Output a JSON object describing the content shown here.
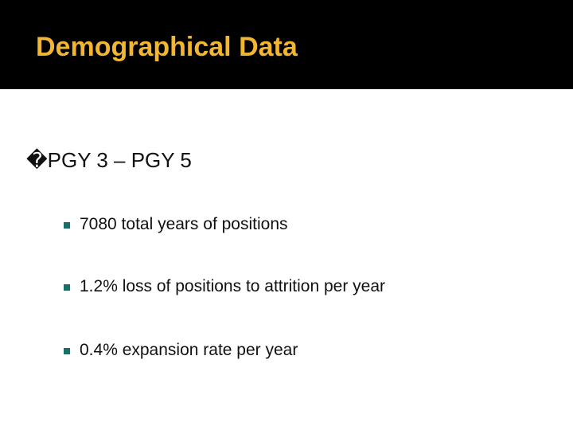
{
  "header": {
    "title": "Demographical Data"
  },
  "bullets": [
    {
      "text": "�PGY 3 – PGY 5",
      "items": [
        "7080 total years of positions",
        "1.2% loss of positions to attrition per year",
        "0.4% expansion rate per year"
      ]
    }
  ]
}
